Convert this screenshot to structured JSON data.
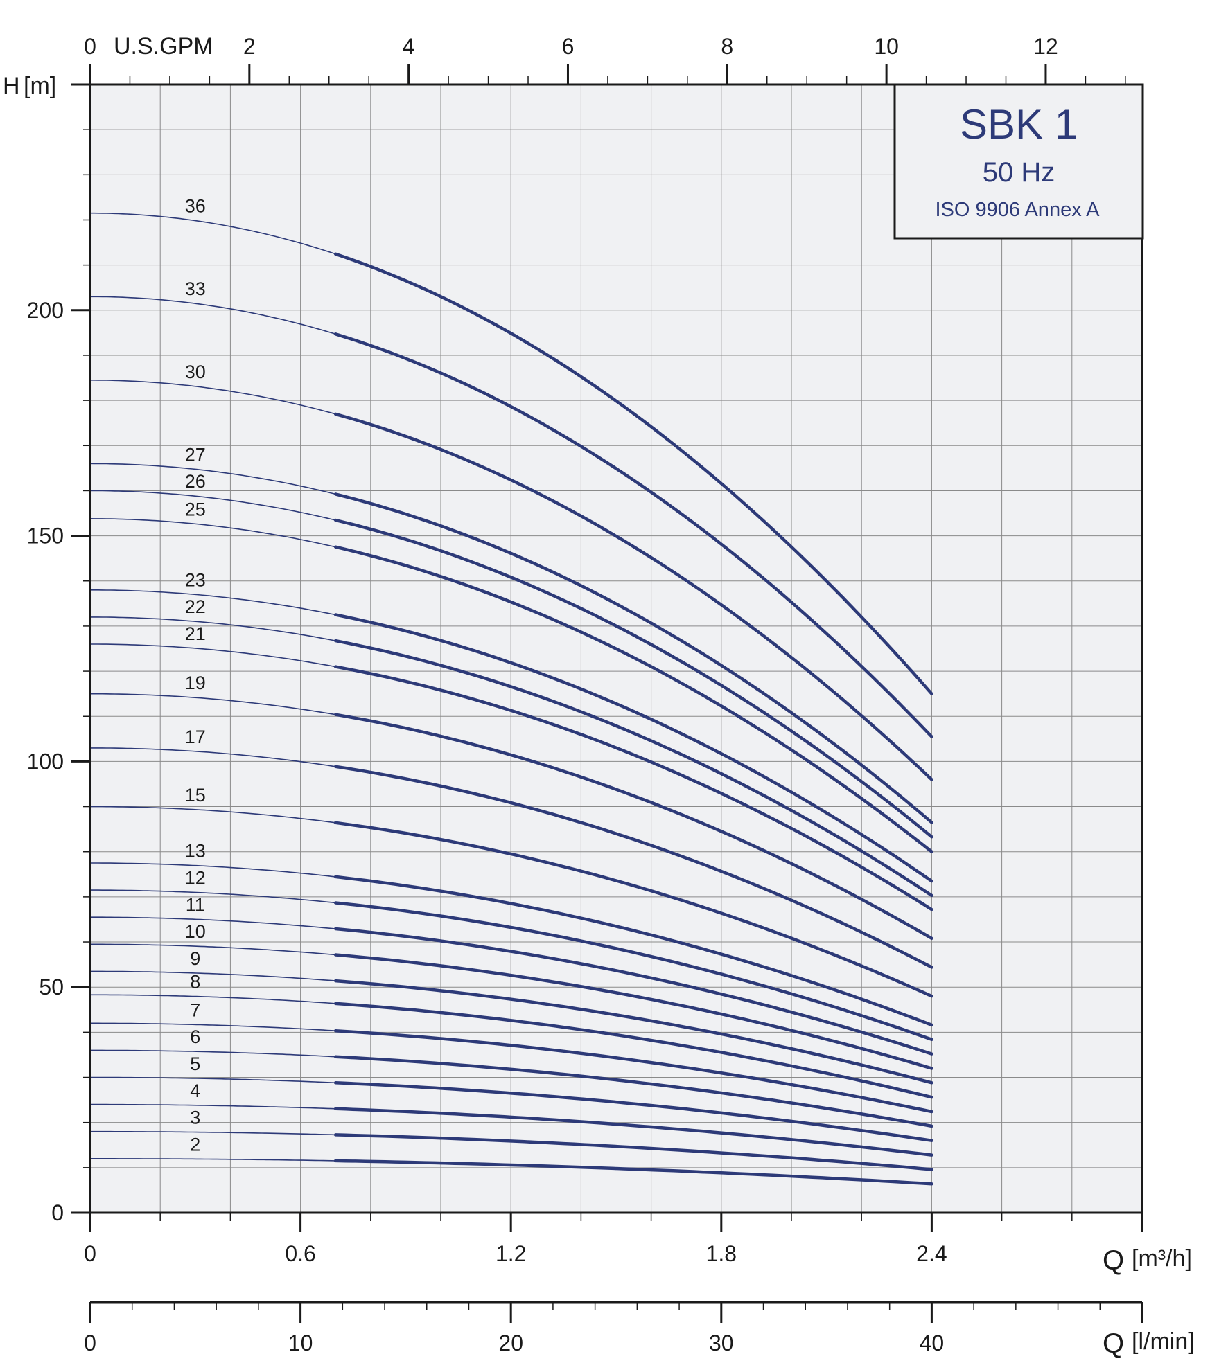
{
  "chart_data": {
    "type": "line",
    "title": "SBK 1",
    "subtitle": "50 Hz",
    "standard": "ISO 9906 Annex A",
    "x_axis": {
      "label": "Q",
      "unit": "[m³/h]",
      "range": [
        0,
        3
      ],
      "ticks": [
        0,
        0.6,
        1.2,
        1.8,
        2.4
      ],
      "tick_labels": [
        "0",
        "0.6",
        "1.2",
        "1.8",
        "2.4"
      ]
    },
    "x_axis_lmin": {
      "label": "Q",
      "unit": "[l/min]",
      "range": [
        0,
        50
      ],
      "ticks": [
        0,
        10,
        20,
        30,
        40
      ],
      "tick_labels": [
        "0",
        "10",
        "20",
        "30",
        "40"
      ]
    },
    "x_axis_gpm": {
      "label": "U.S.GPM",
      "range": [
        0,
        13.21
      ],
      "ticks": [
        0,
        2,
        4,
        6,
        8,
        10,
        12
      ],
      "tick_labels": [
        "0",
        "2",
        "4",
        "6",
        "8",
        "10",
        "12"
      ]
    },
    "y_axis": {
      "label": "H",
      "unit": "[m]",
      "range": [
        0,
        250
      ],
      "ticks": [
        0,
        50,
        100,
        150,
        200
      ],
      "tick_labels": [
        "0",
        "50",
        "100",
        "150",
        "200"
      ]
    },
    "grid": true,
    "operating_range_q": [
      0.7,
      2.4
    ],
    "x": [
      0,
      0.1,
      0.2,
      0.3,
      0.4,
      0.5,
      0.6,
      0.7,
      0.8,
      0.9,
      1.0,
      1.1,
      1.2,
      1.3,
      1.4,
      1.5,
      1.6,
      1.7,
      1.8,
      1.9,
      2.0,
      2.1,
      2.2,
      2.3,
      2.4
    ],
    "series": [
      {
        "name": "36",
        "head_at_zero": 221.5,
        "head_at_max": 115
      },
      {
        "name": "33",
        "head_at_zero": 203,
        "head_at_max": 105.5
      },
      {
        "name": "30",
        "head_at_zero": 184.5,
        "head_at_max": 96
      },
      {
        "name": "27",
        "head_at_zero": 166,
        "head_at_max": 86.5
      },
      {
        "name": "26",
        "head_at_zero": 160,
        "head_at_max": 83.3
      },
      {
        "name": "25",
        "head_at_zero": 153.8,
        "head_at_max": 80
      },
      {
        "name": "23",
        "head_at_zero": 138,
        "head_at_max": 73.5
      },
      {
        "name": "22",
        "head_at_zero": 132,
        "head_at_max": 70.3
      },
      {
        "name": "21",
        "head_at_zero": 126,
        "head_at_max": 67.2
      },
      {
        "name": "19",
        "head_at_zero": 115,
        "head_at_max": 60.8
      },
      {
        "name": "17",
        "head_at_zero": 103,
        "head_at_max": 54.4
      },
      {
        "name": "15",
        "head_at_zero": 90,
        "head_at_max": 48
      },
      {
        "name": "13",
        "head_at_zero": 77.5,
        "head_at_max": 41.6
      },
      {
        "name": "12",
        "head_at_zero": 71.5,
        "head_at_max": 38.4
      },
      {
        "name": "11",
        "head_at_zero": 65.5,
        "head_at_max": 35.2
      },
      {
        "name": "10",
        "head_at_zero": 59.5,
        "head_at_max": 32
      },
      {
        "name": "9",
        "head_at_zero": 53.5,
        "head_at_max": 28.8
      },
      {
        "name": "8",
        "head_at_zero": 48.3,
        "head_at_max": 25.6
      },
      {
        "name": "7",
        "head_at_zero": 42,
        "head_at_max": 22.4
      },
      {
        "name": "6",
        "head_at_zero": 36,
        "head_at_max": 19.2
      },
      {
        "name": "5",
        "head_at_zero": 30,
        "head_at_max": 16
      },
      {
        "name": "4",
        "head_at_zero": 24,
        "head_at_max": 12.8
      },
      {
        "name": "3",
        "head_at_zero": 18,
        "head_at_max": 9.6
      },
      {
        "name": "2",
        "head_at_zero": 12,
        "head_at_max": 6.4
      }
    ]
  },
  "colors": {
    "curve": "#2d3a78",
    "plot_bg": "#f0f1f3",
    "grid": "#8a8a8a",
    "axis": "#1a1a1a",
    "title": "#2d3a78"
  }
}
